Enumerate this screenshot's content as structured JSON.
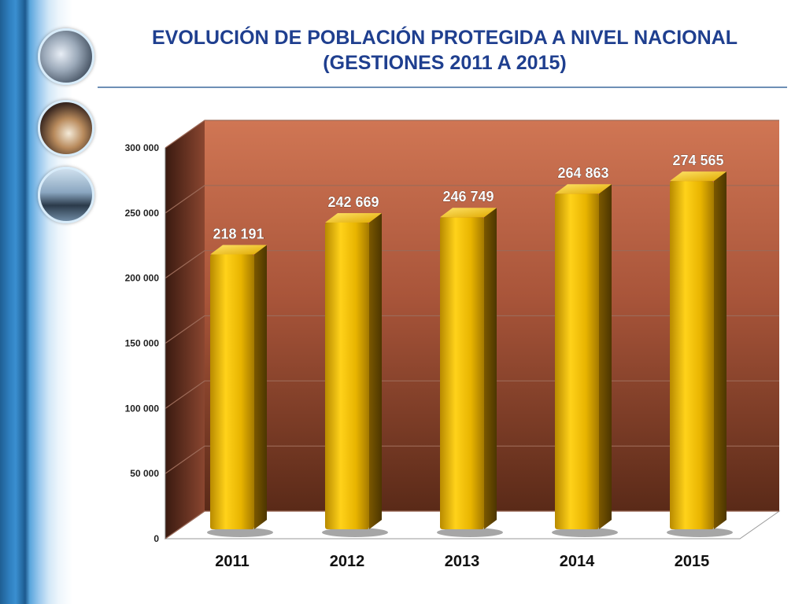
{
  "slide": {
    "title_line1": "EVOLUCIÓN DE POBLACIÓN PROTEGIDA A NIVEL NACIONAL",
    "title_line2": "(GESTIONES 2011 A 2015)"
  },
  "decor": {
    "thumbnails": [
      "hardware-photo-icon",
      "business-people-photo-icon",
      "walking-people-photo-icon"
    ]
  },
  "chart_data": {
    "type": "bar",
    "categories": [
      "2011",
      "2012",
      "2013",
      "2014",
      "2015"
    ],
    "values": [
      218191,
      242669,
      246749,
      264863,
      274565
    ],
    "value_labels": [
      "218 191",
      "242 669",
      "246 749",
      "264 863",
      "274 565"
    ],
    "ylim": [
      0,
      300000
    ],
    "yticks": [
      0,
      50000,
      100000,
      150000,
      200000,
      250000,
      300000
    ],
    "ytick_labels": [
      "0",
      "50 000",
      "100 000",
      "150 000",
      "200 000",
      "250 000",
      "300 000"
    ],
    "title": "",
    "xlabel": "",
    "ylabel": "",
    "grid": true,
    "legend": "none",
    "colors": {
      "bar": "#e3b400",
      "back_wall_top": "#d07654",
      "back_wall_bottom": "#5a2a18",
      "text_label": "#ffffff"
    }
  }
}
